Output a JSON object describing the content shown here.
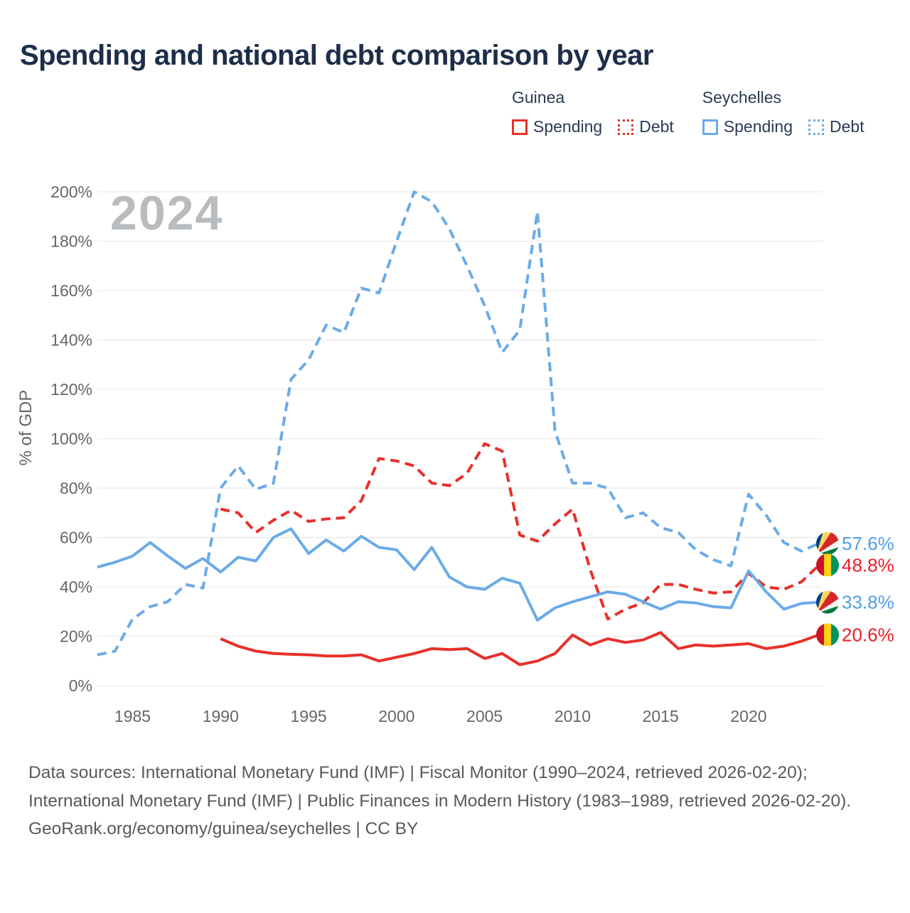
{
  "title": "Spending and national debt comparison by year",
  "watermark": "2024",
  "colors": {
    "guinea": "#e8302a",
    "seychelles": "#6babe8",
    "guinea_label": "#ee1c25",
    "seychelles_label": "#4f9ee5",
    "title_text": "#1d2e49",
    "axis_text": "#666666",
    "gridline": "#e9e9e9",
    "watermark": "#b8bcbf"
  },
  "legend": {
    "groups": [
      {
        "name": "Guinea",
        "color": "#e8302a",
        "items": [
          {
            "label": "Spending",
            "style": "solid"
          },
          {
            "label": "Debt",
            "style": "dotted"
          }
        ]
      },
      {
        "name": "Seychelles",
        "color": "#6babe8",
        "items": [
          {
            "label": "Spending",
            "style": "solid"
          },
          {
            "label": "Debt",
            "style": "dotted"
          }
        ]
      }
    ]
  },
  "chart_data": {
    "type": "line",
    "title": "Spending and national debt comparison by year",
    "xlabel": "",
    "ylabel": "% of GDP",
    "ylim": [
      0,
      200
    ],
    "ytick_step": 20,
    "ytick_suffix": "%",
    "grid": "horizontal",
    "legend_position": "top-right",
    "x_range": [
      1983,
      2024
    ],
    "xticks": [
      1985,
      1990,
      1995,
      2000,
      2005,
      2010,
      2015,
      2020
    ],
    "x": [
      1983,
      1984,
      1985,
      1986,
      1987,
      1988,
      1989,
      1990,
      1991,
      1992,
      1993,
      1994,
      1995,
      1996,
      1997,
      1998,
      1999,
      2000,
      2001,
      2002,
      2003,
      2004,
      2005,
      2006,
      2007,
      2008,
      2009,
      2010,
      2011,
      2012,
      2013,
      2014,
      2015,
      2016,
      2017,
      2018,
      2019,
      2020,
      2021,
      2022,
      2023,
      2024
    ],
    "series": [
      {
        "name": "Guinea Spending",
        "country": "Guinea",
        "metric": "Spending",
        "color": "#e8302a",
        "dash": "solid",
        "values": [
          null,
          null,
          null,
          null,
          null,
          null,
          null,
          19,
          16,
          14,
          13,
          12.7,
          12.5,
          12,
          12,
          12.5,
          10,
          11.5,
          13,
          15,
          14.6,
          15,
          11,
          13,
          8.5,
          10,
          13,
          20.5,
          16.5,
          19,
          17.5,
          18.5,
          21.5,
          15,
          16.5,
          16,
          16.5,
          17,
          15,
          16,
          18,
          20.6
        ]
      },
      {
        "name": "Guinea Debt",
        "country": "Guinea",
        "metric": "Debt",
        "color": "#e8302a",
        "dash": "dashed",
        "values": [
          null,
          null,
          null,
          null,
          null,
          null,
          null,
          71.5,
          70,
          62,
          67,
          71,
          66.5,
          67.5,
          68,
          75,
          92,
          91,
          89,
          82,
          81,
          86,
          98,
          95,
          61,
          58.5,
          65.5,
          71.5,
          47,
          27,
          31,
          33.5,
          41,
          41,
          39,
          37.5,
          38,
          45.5,
          40,
          39,
          42,
          48.8
        ]
      },
      {
        "name": "Seychelles Spending",
        "country": "Seychelles",
        "metric": "Spending",
        "color": "#6babe8",
        "dash": "solid",
        "values": [
          48,
          50,
          52.5,
          58,
          52.5,
          47.5,
          51.5,
          46,
          52,
          50.5,
          60,
          63.5,
          53.5,
          59,
          54.5,
          60.5,
          56,
          55,
          47,
          56,
          44,
          40,
          39,
          43.5,
          41.5,
          26.5,
          31.5,
          34,
          36,
          38,
          37,
          34,
          31,
          34,
          33.5,
          32,
          31.5,
          46.5,
          38,
          31,
          33.3,
          33.8
        ]
      },
      {
        "name": "Seychelles Debt",
        "country": "Seychelles",
        "metric": "Debt",
        "color": "#6babe8",
        "dash": "dashed",
        "values": [
          12.5,
          14,
          27,
          32,
          34,
          41,
          39.5,
          80,
          89,
          79.5,
          82,
          124,
          132,
          146,
          143,
          161,
          159,
          180,
          200,
          196,
          185,
          170,
          154,
          135,
          144,
          192,
          103,
          82,
          82,
          80,
          68,
          70,
          64,
          62,
          55,
          51,
          48.5,
          77.5,
          69,
          58,
          54.5,
          57.6
        ]
      }
    ],
    "end_labels": [
      {
        "text": "57.6%",
        "value": 57.6,
        "series": "Seychelles Debt",
        "flag": "seychelles",
        "color": "#4f9ee5"
      },
      {
        "text": "48.8%",
        "value": 48.8,
        "series": "Guinea Debt",
        "flag": "guinea",
        "color": "#ee1c25"
      },
      {
        "text": "33.8%",
        "value": 33.8,
        "series": "Seychelles Spending",
        "flag": "seychelles",
        "color": "#4f9ee5"
      },
      {
        "text": "20.6%",
        "value": 20.6,
        "series": "Guinea Spending",
        "flag": "guinea",
        "color": "#ee1c25"
      }
    ],
    "flag_colors": {
      "guinea": {
        "red": "#ce1126",
        "yellow": "#fcd116",
        "green": "#009460"
      },
      "seychelles": {
        "blue": "#003f87",
        "yellow": "#fcd75f",
        "red": "#d62828",
        "white": "#f4f4f4",
        "green": "#007a3d"
      }
    }
  },
  "footer": {
    "sources": "Data sources: International Monetary Fund (IMF) | Fiscal Monitor (1990–2024, retrieved 2026-02-20); International Monetary Fund (IMF) | Public Finances in Modern History (1983–1989, retrieved 2026-02-20).",
    "attribution": "GeoRank.org/economy/guinea/seychelles | CC BY"
  }
}
